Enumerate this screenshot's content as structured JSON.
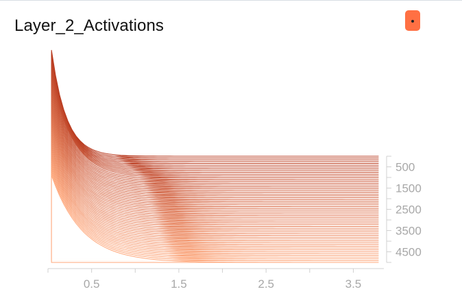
{
  "title": "Layer_2_Activations",
  "legend": {
    "marker_color": "#ff7043"
  },
  "chart_data": {
    "type": "area",
    "title": "Layer_2_Activations",
    "xlabel": "",
    "ylabel": "",
    "x_range": [
      0.0,
      3.85
    ],
    "x_ticks": [
      0.5,
      1.5,
      2.5,
      3.5
    ],
    "x_tick_labels": [
      "0.5",
      "1.5",
      "2.5",
      "3.5"
    ],
    "step_range": [
      0,
      5000
    ],
    "step_ticks": [
      500,
      1500,
      2500,
      3500,
      4500
    ],
    "step_tick_labels": [
      "500",
      "1500",
      "2500",
      "3500",
      "4500"
    ],
    "grid": false,
    "colors": {
      "oldest": "#ffa77a",
      "newest": "#b83a1f",
      "axis": "#d0d0d0",
      "tick_text": "#a8a8a8"
    },
    "histograms": [
      {
        "step": 0,
        "peak": 1.0,
        "decay": 0.17
      },
      {
        "step": 1000,
        "peak": 0.95,
        "decay": 0.25
      },
      {
        "step": 2000,
        "peak": 0.9,
        "decay": 0.28
      },
      {
        "step": 3000,
        "peak": 0.88,
        "decay": 0.3
      },
      {
        "step": 4000,
        "peak": 0.85,
        "decay": 0.32
      },
      {
        "step": 5000,
        "peak": 0.82,
        "decay": 0.35
      }
    ]
  }
}
